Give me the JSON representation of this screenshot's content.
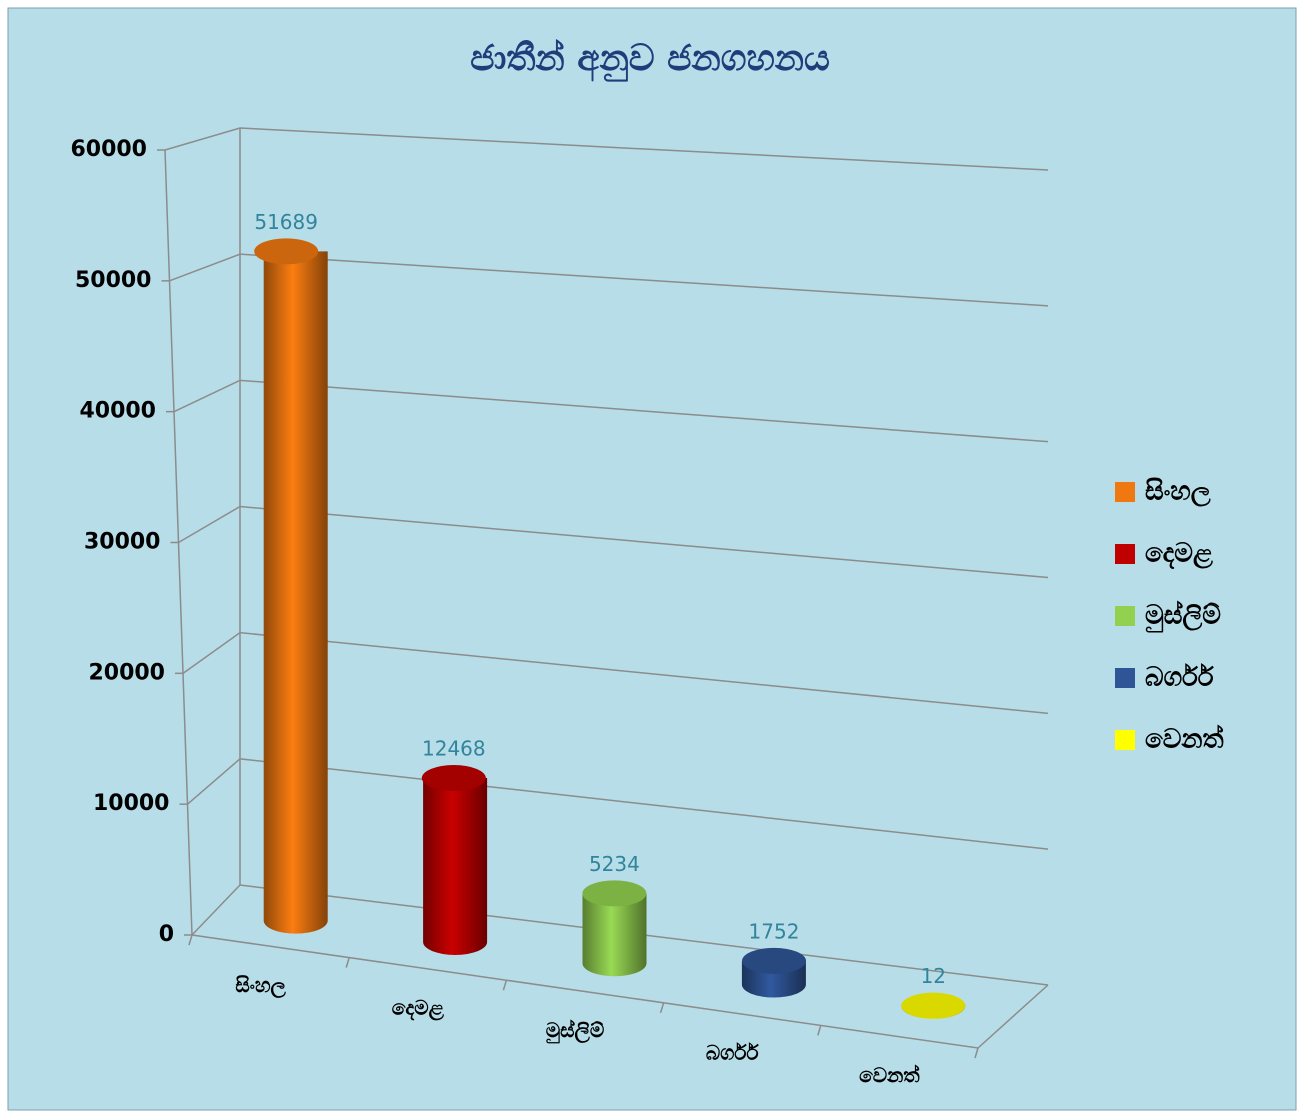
{
  "chart_data": {
    "type": "bar3d",
    "title": "ජාතීන් අනුව ජනගහනය",
    "categories": [
      "සිංහල",
      "දෙමළ",
      "මුස්ලිම්",
      "බර්ගර්",
      "වෙනත්"
    ],
    "values": [
      51689,
      12468,
      5234,
      1752,
      12
    ],
    "colors": [
      "#f07810",
      "#c00000",
      "#92d050",
      "#2f5597",
      "#ffff00"
    ],
    "ylim": [
      0,
      60000
    ],
    "yticks": [
      0,
      10000,
      20000,
      30000,
      40000,
      50000,
      60000
    ],
    "grid": true,
    "legend": "right"
  }
}
